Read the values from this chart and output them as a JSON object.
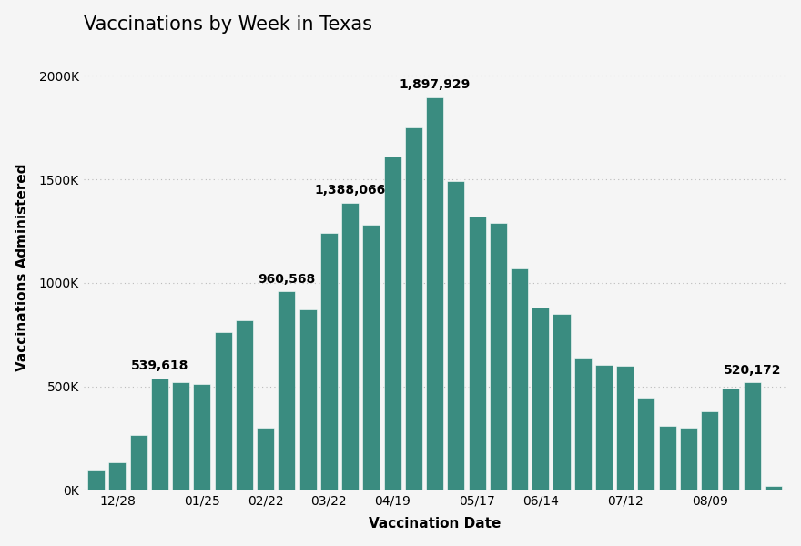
{
  "title": "Vaccinations by Week in Texas",
  "xlabel": "Vaccination Date",
  "ylabel": "Vaccinations Administered",
  "bar_color": "#3a8c80",
  "background_color": "#f5f5f5",
  "values": [
    95000,
    135000,
    265000,
    539618,
    520000,
    510000,
    760000,
    820000,
    300000,
    960568,
    870000,
    1240000,
    1388066,
    1280000,
    1610000,
    1750000,
    1897929,
    1490000,
    1320000,
    1290000,
    1070000,
    880000,
    850000,
    640000,
    605000,
    600000,
    445000,
    310000,
    300000,
    380000,
    490000,
    520172,
    20000
  ],
  "annotated": {
    "3": "539,618",
    "9": "960,568",
    "12": "1,388,066",
    "16": "1,897,929",
    "31": "520,172"
  },
  "xtick_labels": [
    "12/28",
    "01/25",
    "02/22",
    "03/22",
    "04/19",
    "05/17",
    "06/14",
    "07/12",
    "08/09"
  ],
  "xtick_positions": [
    1,
    5,
    8,
    11,
    14,
    18,
    21,
    25,
    29
  ],
  "ylim": [
    0,
    2150000
  ],
  "yticks": [
    0,
    500000,
    1000000,
    1500000,
    2000000
  ],
  "ytick_labels": [
    "0K",
    "500K",
    "1000K",
    "1500K",
    "2000K"
  ],
  "grid_color": "#bbbbbb",
  "title_fontsize": 15,
  "axis_label_fontsize": 11,
  "tick_fontsize": 10,
  "annotation_fontsize": 10
}
